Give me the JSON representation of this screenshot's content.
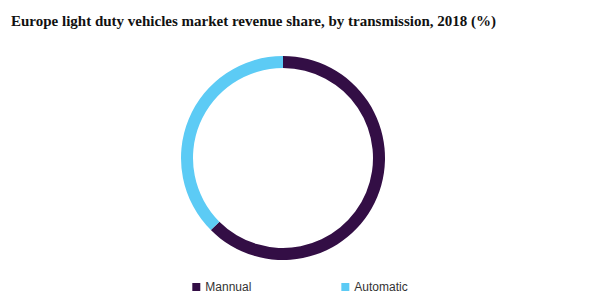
{
  "chart_data": {
    "type": "pie",
    "title": "Europe light duty vehicles market revenue share, by transmission, 2018 (%)",
    "categories": [
      "Mannual",
      "Automatic"
    ],
    "values": [
      62.5,
      37.5
    ],
    "colors": [
      "#330e45",
      "#5ccbf5"
    ],
    "legend": "bottom",
    "data_labels": false
  }
}
